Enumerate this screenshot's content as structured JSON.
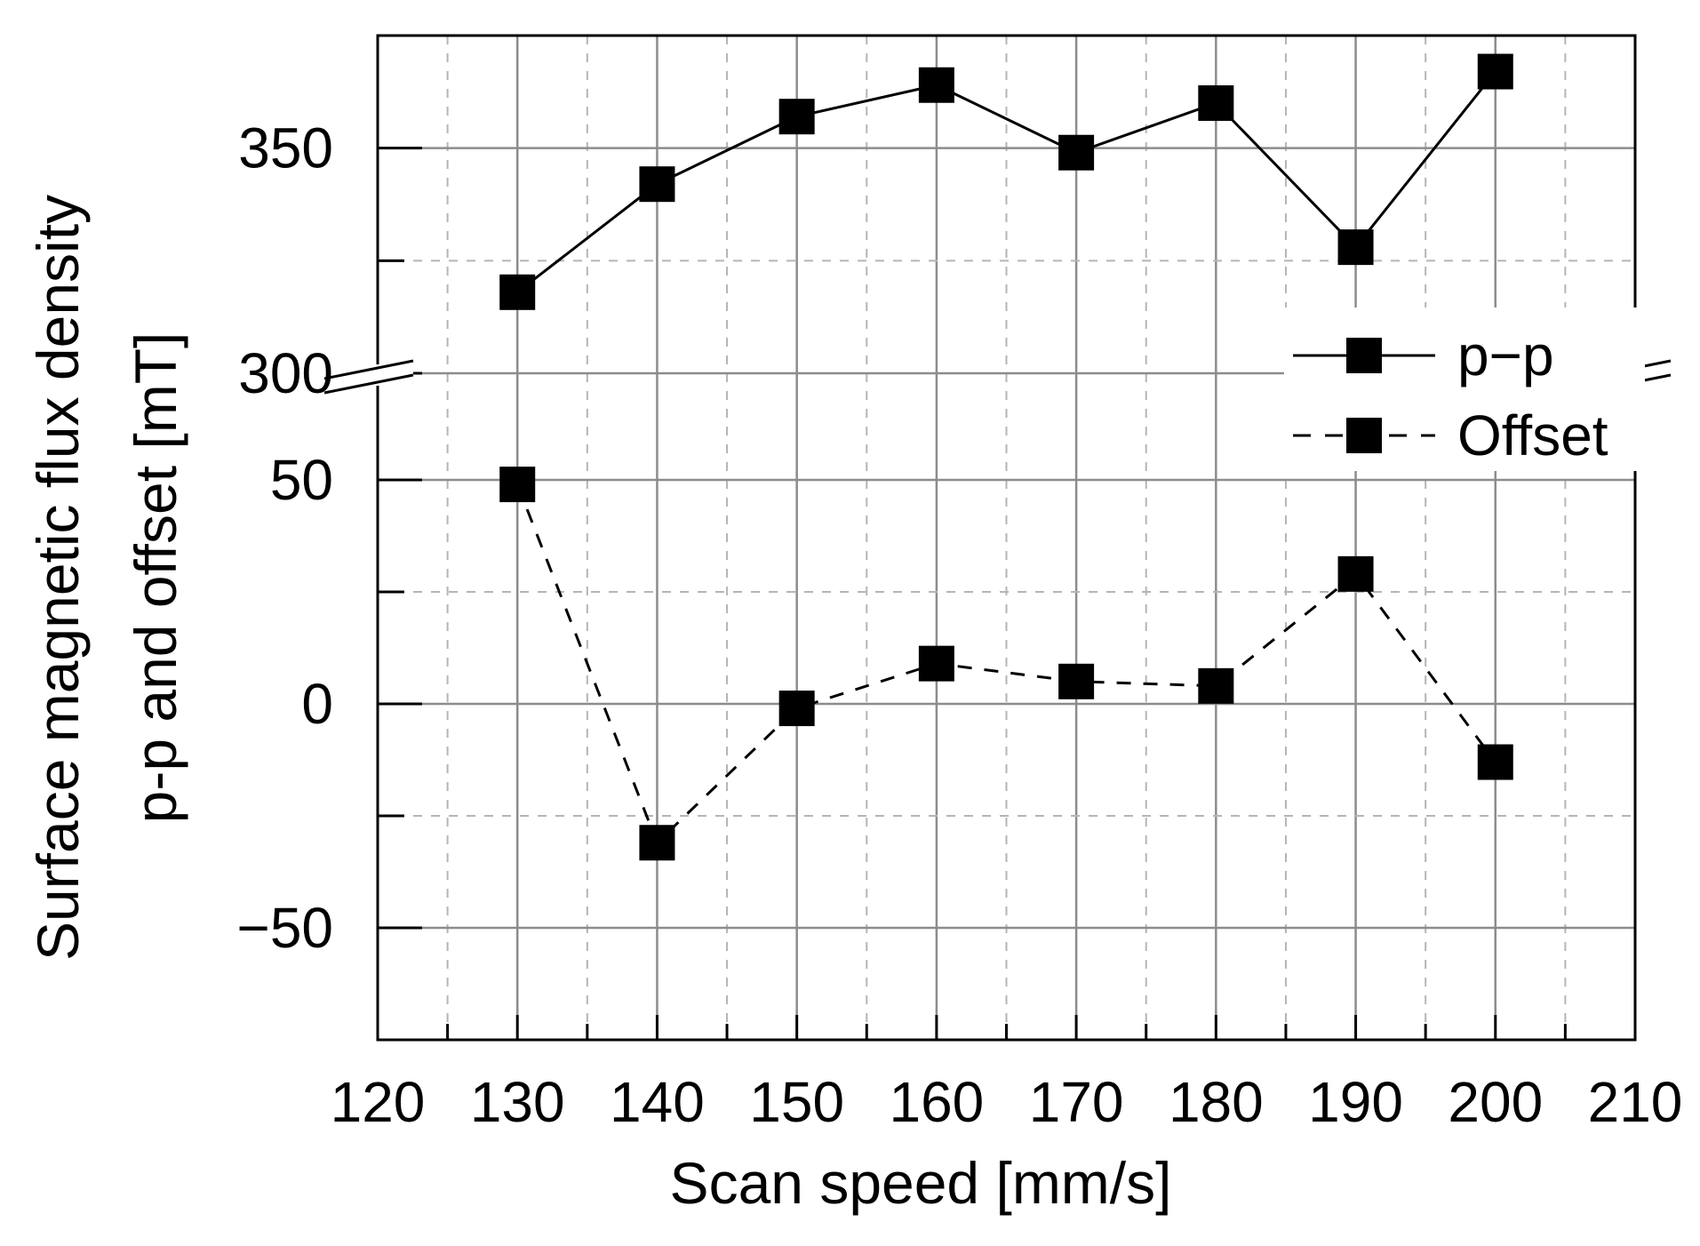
{
  "chart_data": {
    "type": "line",
    "xlabel": "Scan speed [mm/s]",
    "ylabel_line1": "Surface magnetic flux density",
    "ylabel_line2": "p-p and offset [mT]",
    "xlim": [
      120,
      210
    ],
    "x_ticks": [
      120,
      130,
      140,
      150,
      160,
      170,
      180,
      190,
      200,
      210
    ],
    "x_tick_labels": [
      "120",
      "130",
      "140",
      "150",
      "160",
      "170",
      "180",
      "190",
      "200",
      "210"
    ],
    "y_axis_break": {
      "lower_segment": {
        "range": [
          -75,
          50
        ],
        "tick_values": [
          -50,
          0,
          50
        ],
        "tick_labels": [
          "−50",
          "0",
          "50"
        ]
      },
      "upper_segment": {
        "range": [
          300,
          375
        ],
        "tick_values": [
          300,
          350
        ],
        "tick_labels": [
          "300",
          "350"
        ]
      }
    },
    "grid": {
      "major": true,
      "minor_dashed": true
    },
    "legend_position": "right",
    "x": [
      130,
      140,
      150,
      160,
      170,
      180,
      190,
      200
    ],
    "series": [
      {
        "name": "p−p",
        "line_style": "solid",
        "marker": "square",
        "color": "#000000",
        "values": [
          318,
          342,
          357,
          364,
          349,
          360,
          328,
          367
        ]
      },
      {
        "name": "Offset",
        "line_style": "dashed",
        "marker": "square",
        "color": "#000000",
        "values": [
          49,
          -31,
          -1,
          9,
          5,
          4,
          29,
          -13
        ]
      }
    ]
  }
}
